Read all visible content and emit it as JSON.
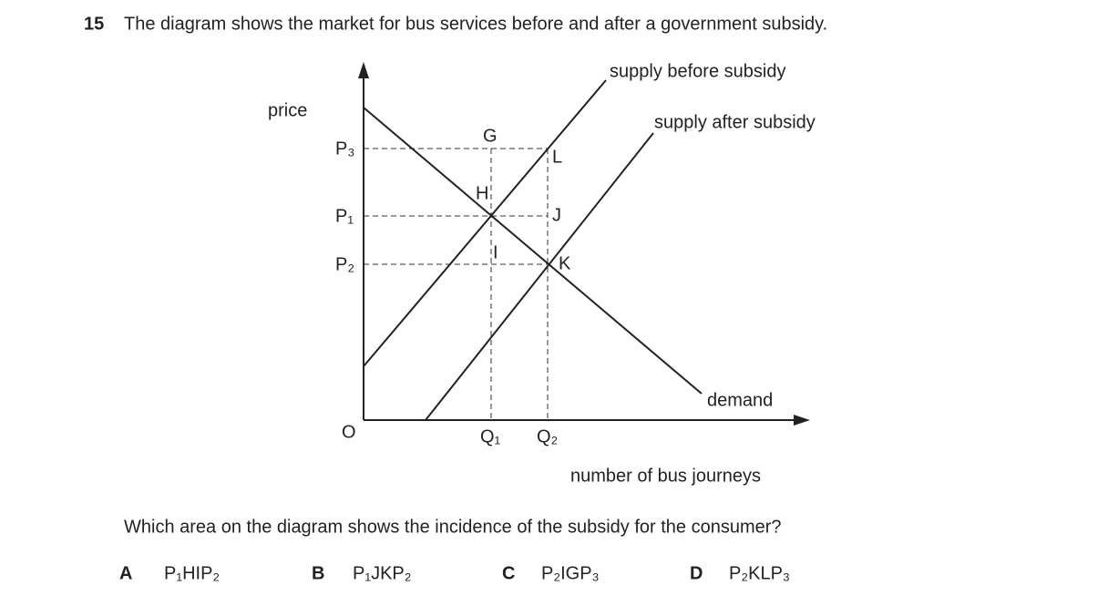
{
  "question": {
    "number": "15",
    "text": "The diagram shows the market for bus services before and after a government subsidy."
  },
  "diagram": {
    "axis_labels": {
      "y": "price",
      "x": "number of bus journeys",
      "origin": "O"
    },
    "curves": {
      "supply_before": "supply before subsidy",
      "supply_after": "supply after subsidy",
      "demand": "demand"
    },
    "price_labels": [
      "P₃",
      "P₁",
      "P₂"
    ],
    "quantity_labels": [
      "Q₁",
      "Q₂"
    ],
    "points": [
      "G",
      "H",
      "I",
      "J",
      "K",
      "L"
    ]
  },
  "prompt": "Which area on the diagram shows the incidence of the subsidy for the consumer?",
  "options": [
    {
      "letter": "A",
      "text": "P₁HIP₂"
    },
    {
      "letter": "B",
      "text": "P₁JKP₂"
    },
    {
      "letter": "C",
      "text": "P₂IGP₃"
    },
    {
      "letter": "D",
      "text": "P₂KLP₃"
    }
  ]
}
